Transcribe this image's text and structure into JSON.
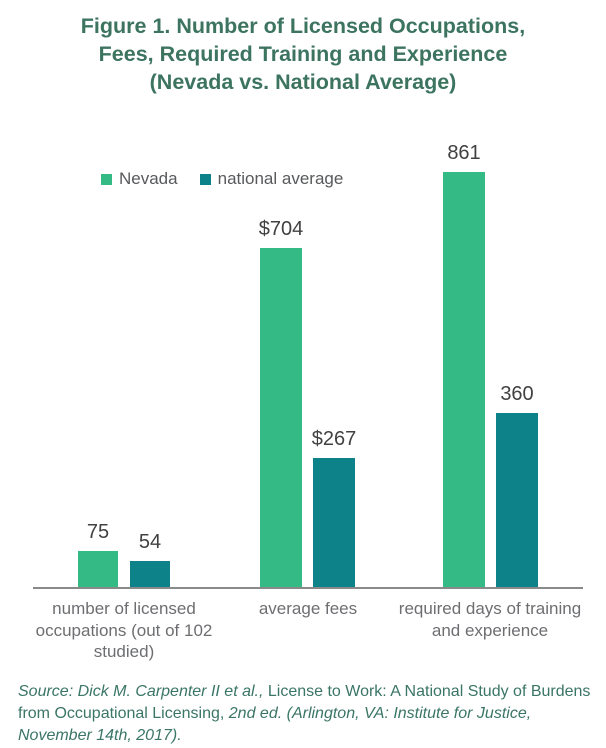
{
  "title": {
    "lines": [
      "Figure 1. Number of Licensed Occupations,",
      "Fees, Required Training and Experience",
      "(Nevada vs. National Average)"
    ]
  },
  "legend": [
    {
      "label": "Nevada",
      "color": "#33ba85"
    },
    {
      "label": "national average",
      "color": "#0d8289"
    }
  ],
  "chart_data": {
    "type": "bar",
    "title": "Figure 1. Number of Licensed Occupations, Fees, Required Training and Experience (Nevada vs. National Average)",
    "categories": [
      "number of licensed occupations (out of 102 studied)",
      "average fees",
      "required days of training and experience"
    ],
    "series": [
      {
        "name": "Nevada",
        "color": "#33ba85",
        "values": [
          75,
          704,
          861
        ],
        "labels": [
          "75",
          "$704",
          "861"
        ]
      },
      {
        "name": "national average",
        "color": "#0d8289",
        "values": [
          54,
          267,
          360
        ],
        "labels": [
          "54",
          "$267",
          "360"
        ]
      }
    ],
    "xlabel": "",
    "ylabel": "",
    "ylim": [
      0,
      880
    ],
    "grid": false,
    "y_axis_visible": false,
    "legend_position": "top-left",
    "value_labels_shown": true,
    "value_label_color": "#414042",
    "axis_label_color": "#6d6e71",
    "baseline_color": "#8a8a8a",
    "title_color": "#3c7460"
  },
  "source": {
    "parts": [
      {
        "text": "Source: Dick M. Carpenter II et al., ",
        "italic": true
      },
      {
        "text": "License to Work: A National Study of Burdens from Occupational Licensing, ",
        "italic": false
      },
      {
        "text": "2nd ed. (Arlington, VA: Institute for Justice, November 14th, 2017).",
        "italic": true
      }
    ]
  }
}
